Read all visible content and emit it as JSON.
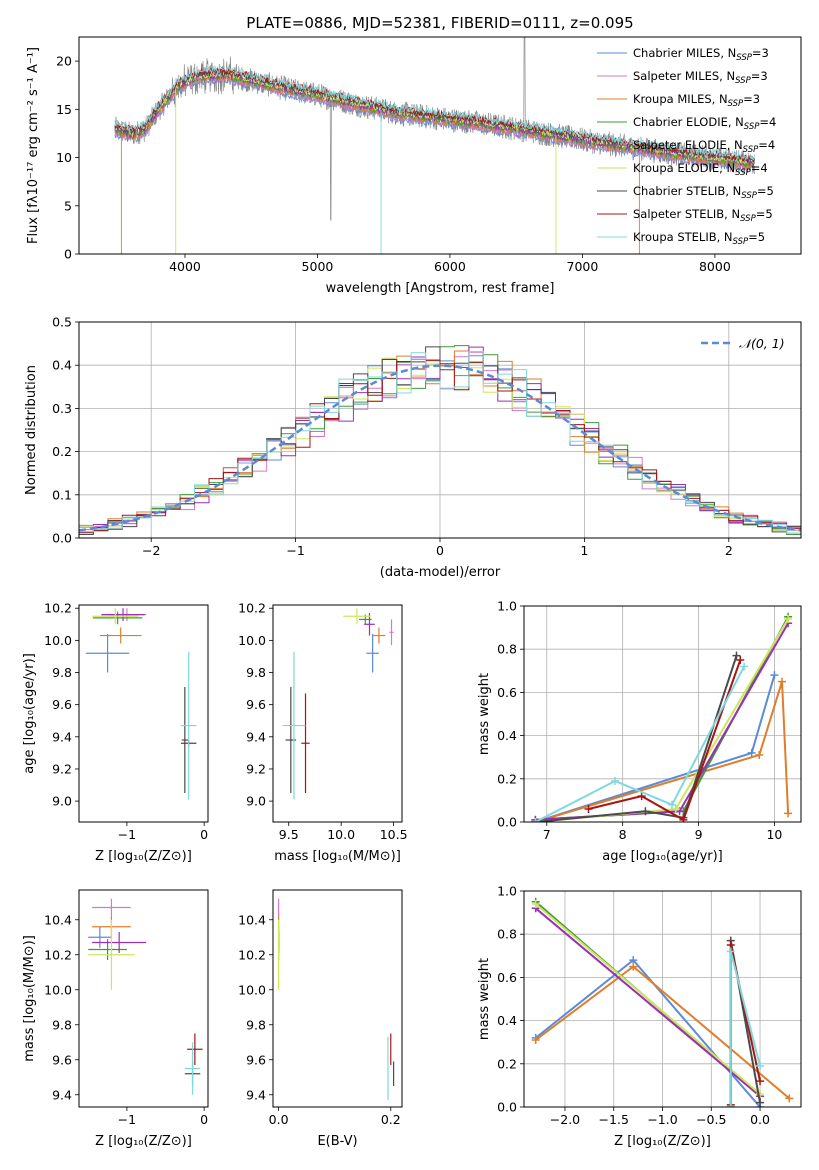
{
  "colors": {
    "chabrier_miles": "#5b8bd6",
    "salpeter_miles": "#d678c8",
    "kroupa_miles": "#e07d2a",
    "chabrier_elodie": "#3f9a3a",
    "salpeter_elodie": "#9a2fb8",
    "kroupa_elodie": "#cde65a",
    "chabrier_stelib": "#4a4a4a",
    "salpeter_stelib": "#a81515",
    "kroupa_stelib": "#7fd8dd",
    "spectrum": "#8a8a8a",
    "gaussian": "#5b8bd6",
    "grid": "#b0b0b0"
  },
  "chart_data": [
    {
      "id": "spectrum",
      "type": "line",
      "title": "PLATE=0886, MJD=52381, FIBERID=0111, z=0.095",
      "xlabel": "wavelength [Angstrom, rest frame]",
      "ylabel": "Flux [fλ10⁻¹⁷ erg cm⁻² s⁻¹ A⁻¹]",
      "xlim": [
        3200,
        8650
      ],
      "ylim": [
        0,
        22.5
      ],
      "xticks": [
        4000,
        5000,
        6000,
        7000,
        8000
      ],
      "yticks": [
        0,
        5,
        10,
        15,
        20
      ],
      "grid": false,
      "legend_position": "top-right",
      "legend": [
        "Chabrier MILES, N_SSP=3",
        "Salpeter MILES, N_SSP=3",
        "Kroupa MILES, N_SSP=3",
        "Chabrier ELODIE, N_SSP=4",
        "Salpeter ELODIE, N_SSP=4",
        "Kroupa ELODIE, N_SSP=4",
        "Chabrier STELIB, N_SSP=5",
        "Salpeter STELIB, N_SSP=5",
        "Kroupa STELIB, N_SSP=5"
      ],
      "spectrum_envelope": {
        "x": [
          3470,
          3600,
          3700,
          3800,
          3950,
          4100,
          4300,
          4500,
          4800,
          5000,
          5300,
          5600,
          5900,
          6200,
          6500,
          6800,
          7100,
          7400,
          7700,
          8000,
          8300
        ],
        "y": [
          13.0,
          12.4,
          12.9,
          15.0,
          17.4,
          18.4,
          18.6,
          18.0,
          17.0,
          16.5,
          15.5,
          14.6,
          14.1,
          13.6,
          13.0,
          12.3,
          11.6,
          11.0,
          10.4,
          9.9,
          9.4
        ]
      }
    },
    {
      "id": "residuals",
      "type": "line",
      "xlabel": "(data-model)/error",
      "ylabel": "Normed distribution",
      "xlim": [
        -2.5,
        2.5
      ],
      "ylim": [
        0,
        0.5
      ],
      "xticks": [
        -2,
        -1,
        0,
        1,
        2
      ],
      "yticks": [
        0.0,
        0.1,
        0.2,
        0.3,
        0.4,
        0.5
      ],
      "grid": true,
      "legend_position": "top-right",
      "legend": [
        "𝒩(0, 1)"
      ]
    },
    {
      "id": "age_vs_Z",
      "type": "scatter",
      "xlabel": "Z [log₁₀(Z/Z⊙)]",
      "ylabel": "age  [log₁₀(age/yr)]",
      "xlim": [
        -1.62,
        0.05
      ],
      "ylim": [
        8.87,
        10.22
      ],
      "xticks": [
        -1,
        0
      ],
      "yticks": [
        9.0,
        9.2,
        9.4,
        9.6,
        9.8,
        10.0,
        10.2
      ],
      "grid": false,
      "points": [
        {
          "x": -1.25,
          "y": 9.92,
          "xerr": 0.28,
          "yerr": 0.12
        },
        {
          "x": -1.0,
          "y": 10.16,
          "xerr": 0.25,
          "yerr": 0.04
        },
        {
          "x": -1.08,
          "y": 10.03,
          "xerr": 0.27,
          "yerr": 0.05
        },
        {
          "x": -1.12,
          "y": 10.14,
          "xerr": 0.32,
          "yerr": 0.04
        },
        {
          "x": -1.05,
          "y": 10.16,
          "xerr": 0.28,
          "yerr": 0.04
        },
        {
          "x": -1.15,
          "y": 10.15,
          "xerr": 0.3,
          "yerr": 0.05
        },
        {
          "x": -0.25,
          "y": 9.38,
          "xerr": 0.04,
          "yerr": 0.33
        },
        {
          "x": -0.2,
          "y": 9.36,
          "xerr": 0.1,
          "yerr": 0.02
        },
        {
          "x": -0.2,
          "y": 9.47,
          "xerr": 0.1,
          "yerr": 0.46
        }
      ]
    },
    {
      "id": "age_vs_mass",
      "type": "scatter",
      "xlabel": "mass [log₁₀(M/M⊙)]",
      "ylabel": "",
      "xlim": [
        9.35,
        10.58
      ],
      "ylim": [
        8.87,
        10.22
      ],
      "xticks": [
        9.5,
        10.0,
        10.5
      ],
      "yticks": [
        9.0,
        9.2,
        9.4,
        9.6,
        9.8,
        10.0,
        10.2
      ],
      "grid": false,
      "points": [
        {
          "x": 10.3,
          "y": 9.92,
          "xerr": 0.06,
          "yerr": 0.12
        },
        {
          "x": 10.48,
          "y": 10.05,
          "xerr": 0.02,
          "yerr": 0.08
        },
        {
          "x": 10.36,
          "y": 10.03,
          "xerr": 0.06,
          "yerr": 0.05
        },
        {
          "x": 10.23,
          "y": 10.13,
          "xerr": 0.06,
          "yerr": 0.03
        },
        {
          "x": 10.27,
          "y": 10.1,
          "xerr": 0.05,
          "yerr": 0.07
        },
        {
          "x": 10.15,
          "y": 10.15,
          "xerr": 0.13,
          "yerr": 0.05
        },
        {
          "x": 9.52,
          "y": 9.38,
          "xerr": 0.05,
          "yerr": 0.33
        },
        {
          "x": 9.66,
          "y": 9.36,
          "xerr": 0.04,
          "yerr": 0.31
        },
        {
          "x": 9.55,
          "y": 9.47,
          "xerr": 0.11,
          "yerr": 0.46
        }
      ]
    },
    {
      "id": "massweight_vs_age",
      "type": "line",
      "xlabel": "age  [log₁₀(age/yr)]",
      "ylabel": "mass weight",
      "xlim": [
        6.7,
        10.35
      ],
      "ylim": [
        0,
        1.0
      ],
      "xticks": [
        7,
        8,
        9,
        10
      ],
      "yticks": [
        0.0,
        0.2,
        0.4,
        0.6,
        0.8,
        1.0
      ],
      "grid": true,
      "series": [
        {
          "key": "chabrier_miles",
          "x": [
            6.85,
            9.7,
            10.0
          ],
          "y": [
            0.0,
            0.32,
            0.68
          ]
        },
        {
          "key": "kroupa_miles",
          "x": [
            6.85,
            9.8,
            10.1,
            10.18
          ],
          "y": [
            0.0,
            0.31,
            0.65,
            0.04
          ]
        },
        {
          "key": "chabrier_elodie",
          "x": [
            6.85,
            8.8,
            10.18
          ],
          "y": [
            0.01,
            0.05,
            0.95
          ]
        },
        {
          "key": "salpeter_elodie",
          "x": [
            6.85,
            8.75,
            10.18
          ],
          "y": [
            0.01,
            0.05,
            0.92
          ]
        },
        {
          "key": "kroupa_elodie",
          "x": [
            6.85,
            8.7,
            10.18
          ],
          "y": [
            0.0,
            0.06,
            0.94
          ]
        },
        {
          "key": "chabrier_stelib",
          "x": [
            6.85,
            8.3,
            8.8,
            9.5
          ],
          "y": [
            0.0,
            0.05,
            0.02,
            0.77
          ]
        },
        {
          "key": "salpeter_stelib",
          "x": [
            7.55,
            8.25,
            8.8,
            9.55
          ],
          "y": [
            0.06,
            0.12,
            0.01,
            0.75
          ]
        },
        {
          "key": "kroupa_stelib",
          "x": [
            6.85,
            7.9,
            8.65,
            9.6
          ],
          "y": [
            0.0,
            0.19,
            0.08,
            0.72
          ]
        }
      ]
    },
    {
      "id": "mass_vs_Z",
      "type": "scatter",
      "xlabel": "Z [log₁₀(Z/Z⊙)]",
      "ylabel": "mass [log₁₀(M/M⊙)]",
      "xlim": [
        -1.62,
        0.05
      ],
      "ylim": [
        9.33,
        10.57
      ],
      "xticks": [
        -1,
        0
      ],
      "yticks": [
        9.4,
        9.6,
        9.8,
        10.0,
        10.2,
        10.4
      ],
      "grid": false,
      "points": [
        {
          "x": -1.35,
          "y": 10.3,
          "xerr": 0.15,
          "yerr": 0.06
        },
        {
          "x": -1.2,
          "y": 10.47,
          "xerr": 0.25,
          "yerr": 0.05
        },
        {
          "x": -1.2,
          "y": 10.36,
          "xerr": 0.25,
          "yerr": 0.06
        },
        {
          "x": -1.25,
          "y": 10.23,
          "xerr": 0.25,
          "yerr": 0.06
        },
        {
          "x": -1.1,
          "y": 10.27,
          "xerr": 0.35,
          "yerr": 0.06
        },
        {
          "x": -1.2,
          "y": 10.2,
          "xerr": 0.3,
          "yerr": 0.2
        },
        {
          "x": -0.15,
          "y": 9.52,
          "xerr": 0.1,
          "yerr": 0.07
        },
        {
          "x": -0.12,
          "y": 9.66,
          "xerr": 0.1,
          "yerr": 0.09
        },
        {
          "x": -0.15,
          "y": 9.55,
          "xerr": 0.1,
          "yerr": 0.15
        }
      ]
    },
    {
      "id": "mass_vs_EBV",
      "type": "scatter",
      "xlabel": "E(B-V)",
      "ylabel": "",
      "xlim": [
        -0.01,
        0.22
      ],
      "ylim": [
        9.33,
        10.57
      ],
      "xticks": [
        0.0,
        0.2
      ],
      "yticks": [
        9.4,
        9.6,
        9.8,
        10.0,
        10.2,
        10.4
      ],
      "grid": false,
      "points": [
        {
          "x": 0.0,
          "y": 10.3,
          "xerr": 0.0,
          "yerr": 0.06
        },
        {
          "x": 0.0,
          "y": 10.47,
          "xerr": 0.0,
          "yerr": 0.05
        },
        {
          "x": 0.0,
          "y": 10.36,
          "xerr": 0.0,
          "yerr": 0.06
        },
        {
          "x": 0.0,
          "y": 10.23,
          "xerr": 0.0,
          "yerr": 0.06
        },
        {
          "x": 0.0,
          "y": 10.27,
          "xerr": 0.0,
          "yerr": 0.06
        },
        {
          "x": 0.0,
          "y": 10.2,
          "xerr": 0.0,
          "yerr": 0.2
        },
        {
          "x": 0.205,
          "y": 9.52,
          "xerr": 0.0,
          "yerr": 0.07
        },
        {
          "x": 0.2,
          "y": 9.66,
          "xerr": 0.0,
          "yerr": 0.09
        },
        {
          "x": 0.195,
          "y": 9.55,
          "xerr": 0.0,
          "yerr": 0.18
        }
      ]
    },
    {
      "id": "massweight_vs_Z",
      "type": "line",
      "xlabel": "Z [log₁₀(Z/Z⊙)]",
      "ylabel": "mass weight",
      "xlim": [
        -2.42,
        0.42
      ],
      "ylim": [
        0,
        1.0
      ],
      "xticks": [
        -2.0,
        -1.5,
        -1.0,
        -0.5,
        0.0
      ],
      "yticks": [
        0.0,
        0.2,
        0.4,
        0.6,
        0.8,
        1.0
      ],
      "grid": true,
      "series": [
        {
          "key": "chabrier_miles",
          "x": [
            -2.3,
            -1.3,
            0.0
          ],
          "y": [
            0.32,
            0.68,
            0.0
          ]
        },
        {
          "key": "kroupa_miles",
          "x": [
            -2.3,
            -1.3,
            0.3
          ],
          "y": [
            0.31,
            0.65,
            0.04
          ]
        },
        {
          "key": "chabrier_elodie",
          "x": [
            -2.3,
            0.0
          ],
          "y": [
            0.95,
            0.05
          ]
        },
        {
          "key": "salpeter_elodie",
          "x": [
            -2.3,
            0.0
          ],
          "y": [
            0.92,
            0.05
          ]
        },
        {
          "key": "kroupa_elodie",
          "x": [
            -2.3,
            0.0
          ],
          "y": [
            0.94,
            0.06
          ]
        },
        {
          "key": "chabrier_stelib",
          "x": [
            -0.3,
            -0.3,
            0.0
          ],
          "y": [
            0.0,
            0.77,
            0.02
          ]
        },
        {
          "key": "salpeter_stelib",
          "x": [
            -0.3,
            -0.3,
            0.0
          ],
          "y": [
            0.01,
            0.75,
            0.12
          ]
        },
        {
          "key": "kroupa_stelib",
          "x": [
            -0.3,
            -0.3,
            0.0
          ],
          "y": [
            0.0,
            0.72,
            0.19
          ]
        }
      ]
    }
  ]
}
